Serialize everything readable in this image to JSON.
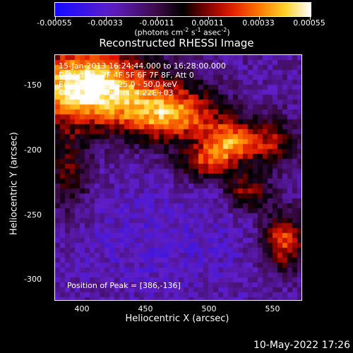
{
  "colorbar": {
    "tick_labels": [
      "-0.00055",
      "-0.00033",
      "-0.00011",
      "0.00011",
      "0.00033",
      "0.00055"
    ],
    "units_prefix": "(photons cm",
    "units_exp1": "-2",
    "units_mid1": " s",
    "units_exp2": "-1",
    "units_mid2": " asec",
    "units_exp3": "-2",
    "units_suffix": ")"
  },
  "title": "Reconstructed RHESSI Image",
  "info": {
    "time_range": "15-Jan-2013 16:24:44.000 to 16:28:00.000",
    "detectors": "Detectors: 3F 4F 5F 6F 7F 8F, Att 0",
    "energy": "Energy Range: 25.0 - 50.0 keV",
    "method": "Clean   Total counts: 4.22E+03",
    "peak": "Position of Peak = [386,-136]"
  },
  "axes": {
    "xlabel": "Heliocentric X (arcsec)",
    "ylabel": "Heliocentric Y (arcsec)",
    "xticks": [
      "400",
      "450",
      "500",
      "550"
    ],
    "yticks": [
      "-150",
      "-200",
      "-250",
      "-300"
    ]
  },
  "footer": "10-May-2022 17:26"
}
